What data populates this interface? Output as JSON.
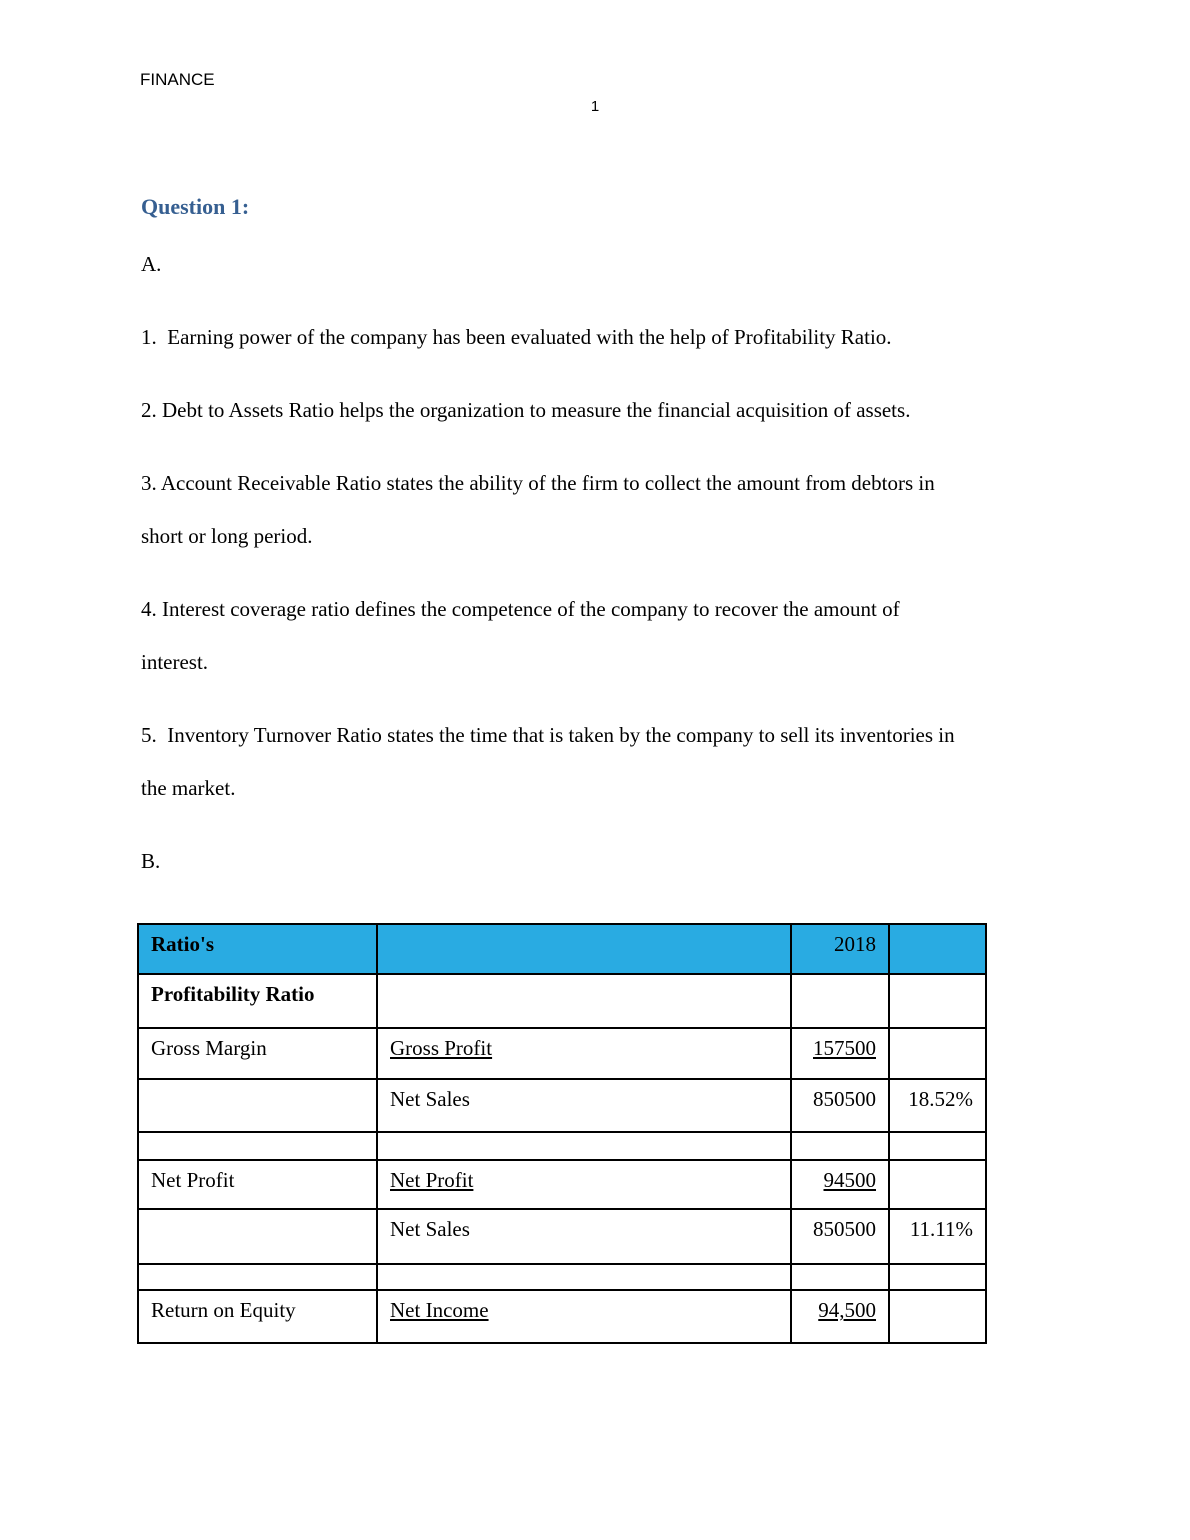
{
  "page": {
    "header": "FINANCE",
    "page_number": "1"
  },
  "heading": {
    "text": "Question 1:",
    "color": "#365F91"
  },
  "sections": {
    "a_label": "A.",
    "b_label": "B."
  },
  "paragraphs": [
    {
      "lines": [
        "1.  Earning power of the company has been evaluated with the help of Profitability Ratio."
      ]
    },
    {
      "lines": [
        "2. Debt to Assets Ratio helps the organization to measure the financial acquisition of assets."
      ]
    },
    {
      "lines": [
        "3. Account Receivable Ratio states the ability of the firm to collect the amount from debtors in",
        "short or long period."
      ]
    },
    {
      "lines": [
        "4. Interest coverage ratio defines the competence of the company to recover the amount of",
        "interest."
      ]
    },
    {
      "lines": [
        "5.  Inventory Turnover Ratio states the time that is taken by the company to sell its inventories in",
        "the market."
      ]
    }
  ],
  "table": {
    "header_bg": "#29ABE2",
    "rows": [
      {
        "c1": "Ratio's",
        "c2": "",
        "c3": "2018",
        "c4": ""
      },
      {
        "c1": "Profitability Ratio",
        "c2": "",
        "c3": "",
        "c4": ""
      },
      {
        "c1": "Gross Margin",
        "c2": "Gross Profit",
        "c3": "157500",
        "c4": ""
      },
      {
        "c1": "",
        "c2": "Net Sales",
        "c3": "850500",
        "c4": "18.52%"
      },
      {
        "c1": "",
        "c2": "",
        "c3": "",
        "c4": ""
      },
      {
        "c1": "Net Profit",
        "c2": "Net Profit",
        "c3": "94500",
        "c4": ""
      },
      {
        "c1": "",
        "c2": "Net Sales",
        "c3": "850500",
        "c4": "11.11%"
      },
      {
        "c1": "",
        "c2": "",
        "c3": "",
        "c4": ""
      },
      {
        "c1": "Return on Equity",
        "c2": "Net Income",
        "c3": "94,500",
        "c4": ""
      }
    ]
  }
}
